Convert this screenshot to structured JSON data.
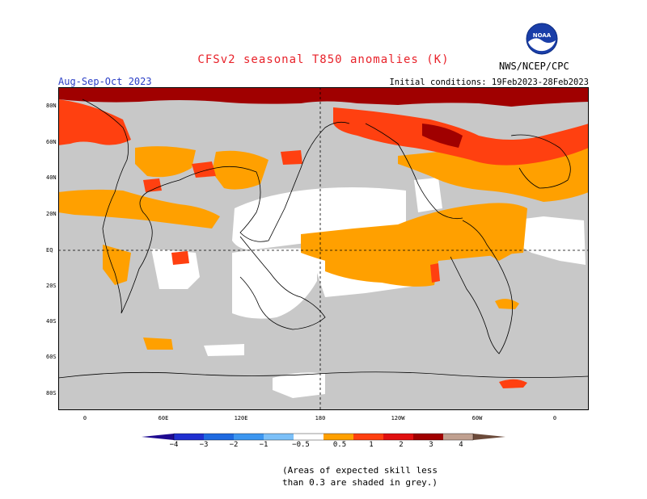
{
  "header": {
    "title": "CFSv2 seasonal T850 anomalies (K)",
    "season": "Aug-Sep-Oct 2023",
    "initial_conditions": "Initial conditions: 19Feb2023-28Feb2023",
    "credit": "NWS/NCEP/CPC",
    "logo_text": "NOAA"
  },
  "map": {
    "lat_labels": [
      "80N",
      "60N",
      "40N",
      "20N",
      "EQ",
      "20S",
      "40S",
      "60S",
      "80S"
    ],
    "lon_labels": [
      "0",
      "60E",
      "120E",
      "180",
      "120W",
      "60W",
      "0"
    ],
    "colors": {
      "skill_mask": "#c8c8c8",
      "neutral": "#ffffff",
      "warm_0_5_1": "#ffa000",
      "warm_1_2": "#ff4010",
      "warm_2_3": "#a00000",
      "warm_3_4": "#c0a090",
      "coast": "#000000"
    }
  },
  "colorbar": {
    "labels": [
      "−4",
      "−3",
      "−2",
      "−1",
      "−0.5",
      "0.5",
      "1",
      "2",
      "3",
      "4"
    ],
    "colors": [
      "#1e0a90",
      "#2030d0",
      "#1f6ae0",
      "#3c96f0",
      "#7cc0f8",
      "#ffffff",
      "#ffa000",
      "#ff4010",
      "#e01010",
      "#a00000",
      "#c0a090",
      "#6b4a3a"
    ]
  },
  "note": {
    "line1": "(Areas of expected skill less",
    "line2": "than 0.3 are shaded in grey.)"
  }
}
